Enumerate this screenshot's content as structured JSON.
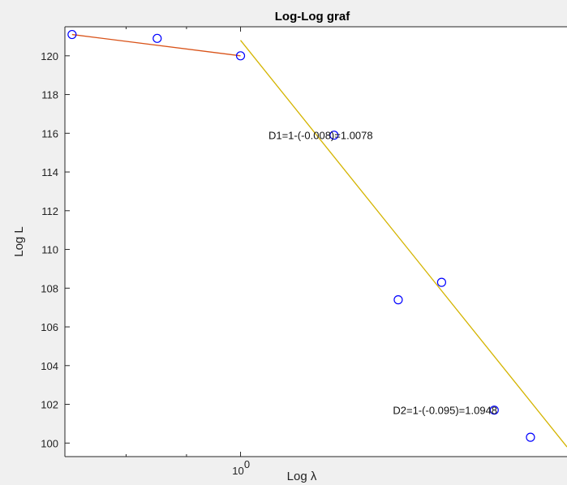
{
  "chart_data": {
    "type": "scatter",
    "title": "Log-Log graf",
    "xlabel": "Log  λ",
    "ylabel": "Log L",
    "xscale": "log",
    "xlim": [
      0.71,
      1.89
    ],
    "ylim": [
      99.3,
      121.5
    ],
    "y_ticks": [
      100,
      102,
      104,
      106,
      108,
      110,
      112,
      114,
      116,
      118,
      120
    ],
    "x_tick_labels": [
      {
        "base": "10",
        "exp": "0"
      }
    ],
    "grid": false,
    "marker_color": "#0000ff",
    "points": [
      {
        "x": 0.72,
        "y": 121.1
      },
      {
        "x": 0.85,
        "y": 120.9
      },
      {
        "x": 1.0,
        "y": 120.0
      },
      {
        "x": 1.2,
        "y": 115.9
      },
      {
        "x": 1.36,
        "y": 107.4
      },
      {
        "x": 1.48,
        "y": 108.3
      },
      {
        "x": 1.64,
        "y": 101.7
      },
      {
        "x": 1.76,
        "y": 100.3
      }
    ],
    "fit_lines": [
      {
        "color": "#d95319",
        "x": [
          0.72,
          1.0
        ],
        "y": [
          121.1,
          120.0
        ]
      },
      {
        "color": "#d4b400",
        "x": [
          1.0,
          1.89
        ],
        "y": [
          120.8,
          99.8
        ]
      }
    ],
    "annotations": [
      {
        "text": "D1=1-(-0.008)=1.0078",
        "x": 1.056,
        "y": 115.9
      },
      {
        "text": "D2=1-(-0.095)=1.0948",
        "x": 1.346,
        "y": 101.7
      }
    ]
  }
}
